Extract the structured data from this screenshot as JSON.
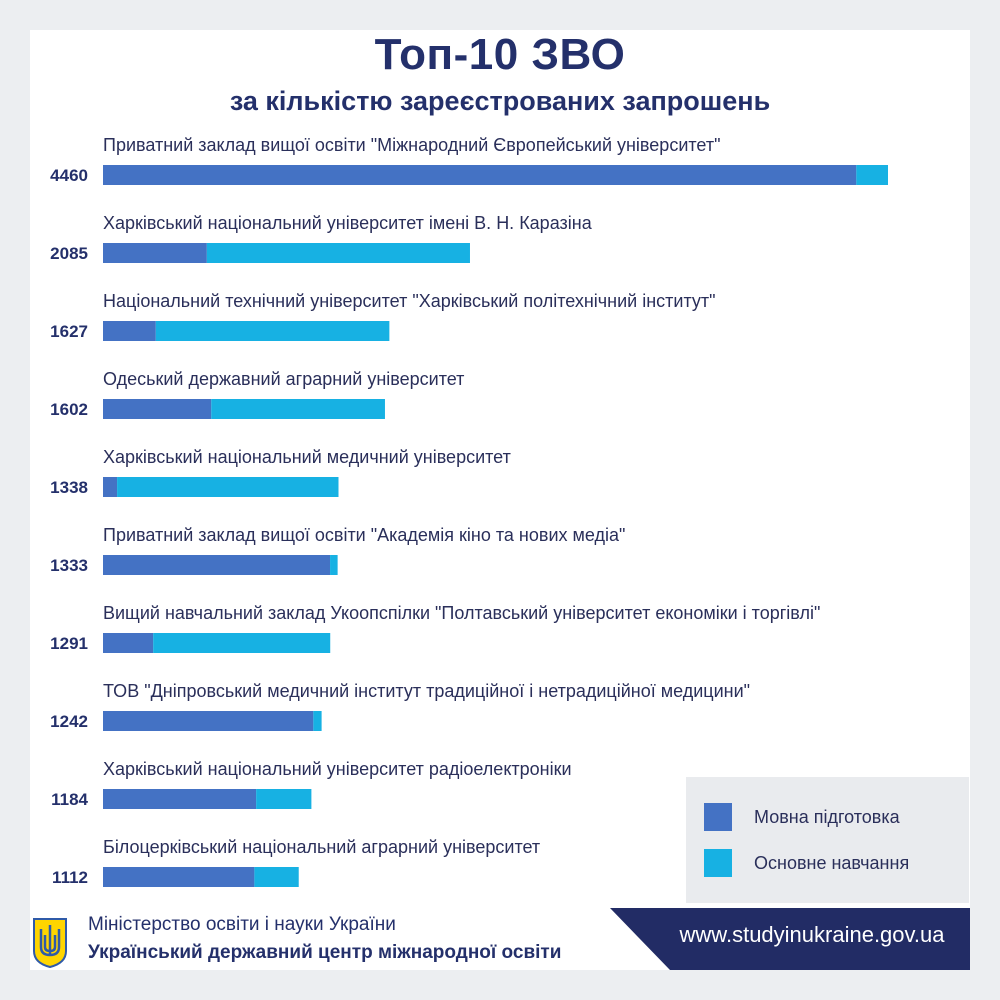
{
  "title": "Топ-10 ЗВО",
  "subtitle": "за кількістю зареєстрованих запрошень",
  "colors": {
    "series_primary": "#4472c4",
    "series_secondary": "#17b1e3",
    "dark_navy": "#24306b",
    "text": "#2a2f5a"
  },
  "chart_data": {
    "type": "bar",
    "orientation": "horizontal",
    "stacked": true,
    "categories": [
      "Приватний заклад вищої освіти \"Міжнародний Європейський університет\"",
      "Харківський національний університет імені В. Н. Каразіна",
      "Національний технічний університет \"Харківський політехнічний інститут\"",
      "Одеський державний аграрний університет",
      "Харківський національний медичний університет",
      "Приватний заклад вищої освіти \"Академія кіно та нових медіа\"",
      "Вищий навчальний заклад Укоопспілки \"Полтавський університет економіки і торгівлі\"",
      "ТОВ \"Дніпровський медичний інститут традиційної і нетрадиційної медицини\"",
      "Харківський національний університет радіоелектроніки",
      "Білоцерківський національний аграрний університет"
    ],
    "totals": [
      "4460",
      "2085",
      "1627",
      "1602",
      "1338",
      "1333",
      "1291",
      "1242",
      "1184",
      "1112"
    ],
    "series": [
      {
        "name": "Мовна підготовка",
        "values": [
          4280,
          590,
          300,
          615,
          80,
          1290,
          285,
          1195,
          870,
          860
        ]
      },
      {
        "name": "Основне навчання",
        "values": [
          180,
          1495,
          1327,
          987,
          1258,
          43,
          1006,
          47,
          314,
          252
        ]
      }
    ],
    "legend_position": "bottom-right",
    "grid": false,
    "xlim": [
      0,
      4460
    ]
  },
  "footer": {
    "ministry": "Міністерство освіти і науки України",
    "center": "Український державний центр міжнародної освіти",
    "website": "www.studyinukraine.gov.ua"
  }
}
